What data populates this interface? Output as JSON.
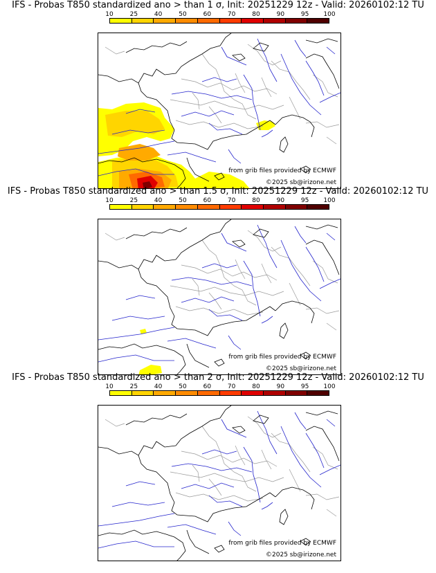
{
  "colorbar": {
    "labels": [
      "10",
      "25",
      "40",
      "50",
      "60",
      "70",
      "80",
      "90",
      "95",
      "100"
    ],
    "colors": [
      "#ffff00",
      "#ffd500",
      "#ffaa00",
      "#ff8c00",
      "#ff6a00",
      "#ff3c00",
      "#e00000",
      "#b00000",
      "#800000",
      "#500000"
    ]
  },
  "credits": {
    "source": "from grib files provided by ECMWF",
    "copyright": "©2025 sb@irizone.net"
  },
  "panels": [
    {
      "title": "IFS - Probas T850  standardized ano > than 1 σ, Init: 20251229 12z - Valid: 20260102:12 TU"
    },
    {
      "title": "IFS - Probas T850  standardized ano > than 1.5 σ, Init: 20251229 12z - Valid: 20260102:12 TU"
    },
    {
      "title": "IFS - Probas T850  standardized ano > than 2 σ, Init: 20251229 12z - Valid: 20260102:12 TU"
    }
  ],
  "map_style": {
    "coast_color": "#000000",
    "river_color": "#2222cc",
    "border_color": "#999999"
  }
}
